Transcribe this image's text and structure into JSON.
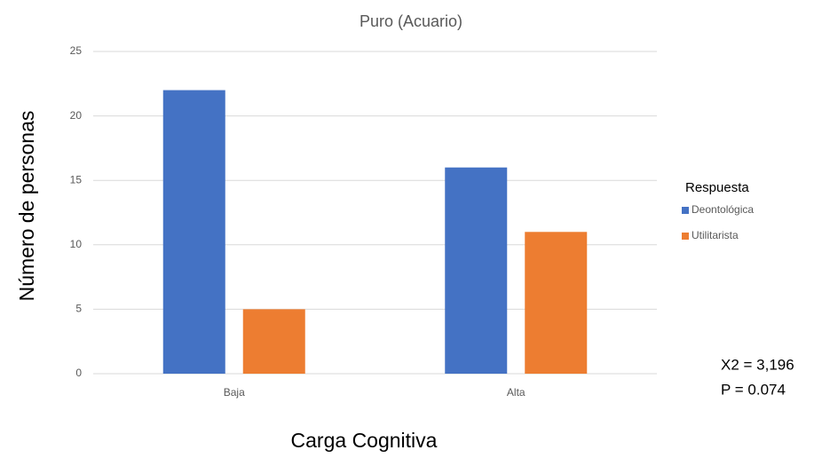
{
  "chart_data": {
    "type": "bar",
    "title": "Puro (Acuario)",
    "y_label": "Número de personas",
    "x_label": "Carga Cognitiva",
    "legend_title": "Respuesta",
    "categories": [
      "Baja",
      "Alta"
    ],
    "series": [
      {
        "name": "Deontológica",
        "color": "#4472c4",
        "values": [
          22,
          16
        ]
      },
      {
        "name": "Utilitarista",
        "color": "#ed7d31",
        "values": [
          5,
          11
        ]
      }
    ],
    "ylim": [
      0,
      25
    ],
    "yticks": [
      0,
      5,
      10,
      15,
      20,
      25
    ],
    "grid": true,
    "legend": "right",
    "annotations": [
      "X2 = 3,196",
      "P = 0.074"
    ]
  }
}
